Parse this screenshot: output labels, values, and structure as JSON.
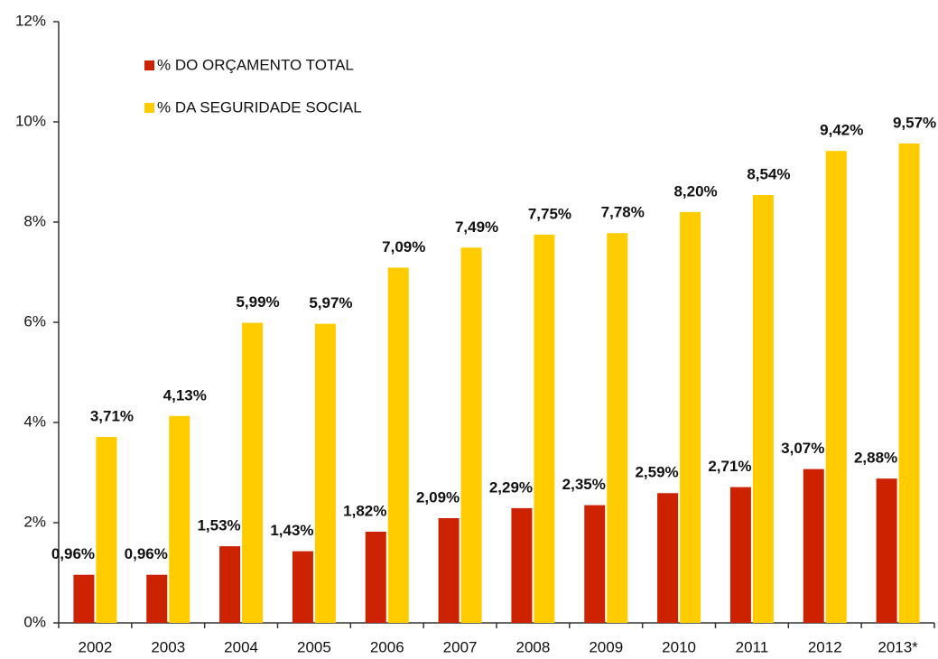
{
  "chart_data": {
    "type": "bar",
    "categories": [
      "2002",
      "2003",
      "2004",
      "2005",
      "2006",
      "2007",
      "2008",
      "2009",
      "2010",
      "2011",
      "2012",
      "2013*"
    ],
    "series": [
      {
        "name": "% DO ORÇAMENTO TOTAL",
        "color": "#cc2200",
        "values": [
          0.96,
          0.96,
          1.53,
          1.43,
          1.82,
          2.09,
          2.29,
          2.35,
          2.59,
          2.71,
          3.07,
          2.88
        ],
        "value_labels": [
          "0,96%",
          "0,96%",
          "1,53%",
          "1,43%",
          "1,82%",
          "2,09%",
          "2,29%",
          "2,35%",
          "2,59%",
          "2,71%",
          "3,07%",
          "2,88%"
        ]
      },
      {
        "name": "% DA SEGURIDADE SOCIAL",
        "color": "#ffcc00",
        "values": [
          3.71,
          4.13,
          5.99,
          5.97,
          7.09,
          7.49,
          7.75,
          7.78,
          8.2,
          8.54,
          9.42,
          9.57
        ],
        "value_labels": [
          "3,71%",
          "4,13%",
          "5,99%",
          "5,97%",
          "7,09%",
          "7,49%",
          "7,75%",
          "7,78%",
          "8,20%",
          "8,54%",
          "9,42%",
          "9,57%"
        ]
      }
    ],
    "ylim": [
      0,
      12
    ],
    "yticks": [
      {
        "value": 0,
        "label": "0%"
      },
      {
        "value": 2,
        "label": "2%"
      },
      {
        "value": 4,
        "label": "4%"
      },
      {
        "value": 6,
        "label": "6%"
      },
      {
        "value": 8,
        "label": "8%"
      },
      {
        "value": 10,
        "label": "10%"
      },
      {
        "value": 12,
        "label": "12%"
      }
    ],
    "legend": "upper left"
  }
}
